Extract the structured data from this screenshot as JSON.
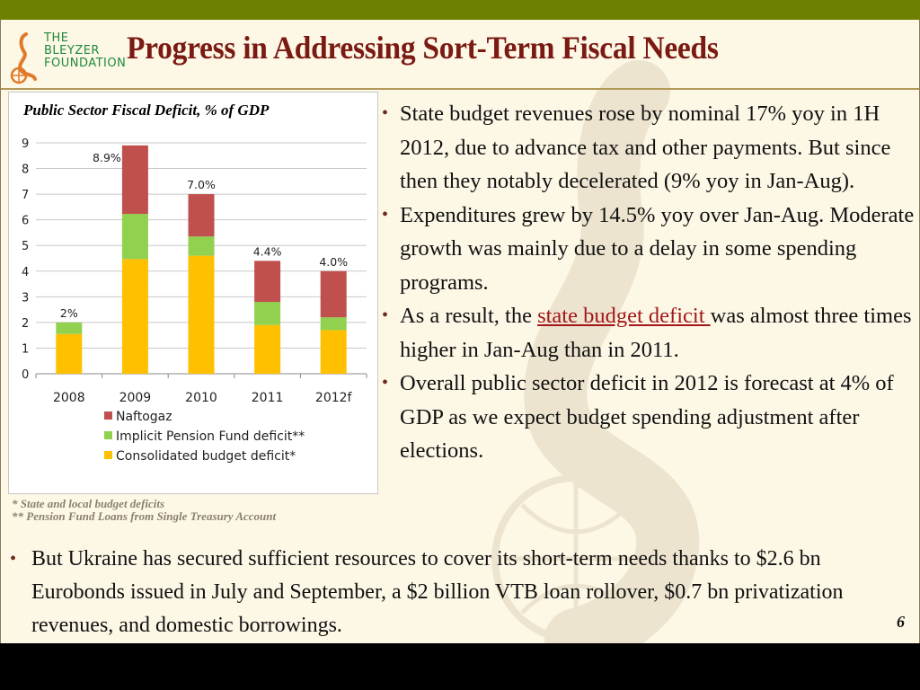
{
  "header": {
    "logo_lines": [
      "THE",
      "BLEYZER",
      "FOUNDATION"
    ],
    "title": "Progress in Addressing  Sort-Term Fiscal Needs"
  },
  "colors": {
    "topbar": "#6f7f00",
    "title": "#7a1a12",
    "naftogaz": "#c0504d",
    "pension": "#92d050",
    "consolidated": "#ffc000",
    "link": "#a4161a"
  },
  "chart_data": {
    "type": "bar",
    "stacked": true,
    "title": "Public Sector Fiscal Deficit, % of GDP",
    "categories": [
      "2008",
      "2009",
      "2010",
      "2011",
      "2012f"
    ],
    "series": [
      {
        "name": "Consolidated budget deficit*",
        "color": "#ffc000",
        "values": [
          1.55,
          4.47,
          4.6,
          1.9,
          1.7
        ]
      },
      {
        "name": "Implicit Pension Fund deficit**",
        "color": "#92d050",
        "values": [
          0.45,
          1.76,
          0.75,
          0.9,
          0.5
        ]
      },
      {
        "name": "Naftogaz",
        "color": "#c0504d",
        "values": [
          0,
          2.67,
          1.65,
          1.6,
          1.8
        ]
      }
    ],
    "total_labels": [
      "2%",
      "8.9%",
      "7.0%",
      "4.4%",
      "4.0%"
    ],
    "legend": [
      "Naftogaz",
      "Implicit Pension Fund deficit**",
      "Consolidated budget deficit*"
    ],
    "legend_placement": "bottom",
    "yticks": [
      "0",
      "1",
      "2",
      "3",
      "4",
      "5",
      "6",
      "7",
      "8",
      "9"
    ],
    "ylim": [
      0,
      9
    ],
    "xlabel": "",
    "ylabel": "",
    "grid": true
  },
  "footnotes": [
    "* State and local budget deficits",
    "** Pension Fund Loans from Single Treasury Account"
  ],
  "bullets": [
    {
      "text": "State budget revenues rose by nominal 17% yoy in 1H 2012, due to advance tax and other payments. But since then they notably decelerated (9% yoy in Jan-Aug)."
    },
    {
      "text": "Expenditures grew by 14.5% yoy over Jan-Aug. Moderate growth was mainly due to a delay in some spending programs."
    },
    {
      "pre": "As a result, the ",
      "link": "state budget deficit ",
      "post": "was almost three times higher in Jan-Aug than in 2011."
    },
    {
      "text": "Overall public sector deficit in 2012 is forecast at 4% of GDP as we expect budget spending adjustment after elections."
    }
  ],
  "bottom_bullet": "But Ukraine has secured sufficient resources to cover its short-term needs thanks to $2.6 bn Eurobonds issued in July and September, a $2 billion VTB loan rollover, $0.7 bn privatization revenues, and domestic borrowings.",
  "page_number": "6",
  "bullet_glyph": "•"
}
